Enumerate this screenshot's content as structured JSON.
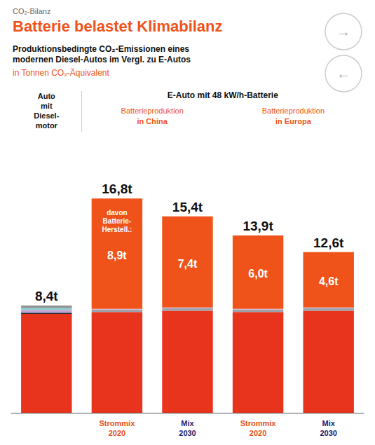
{
  "chart_data": {
    "type": "bar",
    "stacked": true,
    "supertitle": "CO₂-Bilanz",
    "title": "Batterie belastet Klimabilanz",
    "title_color": "#F0531A",
    "subtitle": "Produktionsbedingte CO₂-Emissionen eines\nmodernen Diesel-Autos im Vergl. zu E-Autos",
    "unit_note": "in Tonnen CO₂-Äquivalent",
    "nav_arrows": [
      "→",
      "←"
    ],
    "header_first": "Auto\nmit\nDiesel-\nmotor",
    "header_group": "E-Auto mit 48 kW/h-Batterie",
    "subgroup_headers": [
      "Batterieproduktion\nin China",
      "Batterieproduktion\nin Europa"
    ],
    "categories": [
      null,
      "Strommix\n2020",
      "Mix\n2030",
      "Strommix\n2020",
      "Mix\n2030"
    ],
    "category_colors": [
      null,
      "#E8501A",
      "#1A1A6E",
      "#E8501A",
      "#1A1A6E"
    ],
    "ylim": [
      0,
      20
    ],
    "tick_labels": "x",
    "grid": false,
    "series": [
      {
        "color": "#E8341C",
        "values": [
          7.75,
          7.9,
          8.0,
          7.9,
          8.0
        ]
      },
      {
        "color": "#2A2A2A",
        "values": [
          0.05,
          null,
          null,
          null,
          null
        ]
      },
      {
        "color": "#1A3560",
        "values": [
          0.04,
          null,
          null,
          null,
          null
        ]
      },
      {
        "color": "#7878B8",
        "values": [
          0.04,
          null,
          null,
          null,
          null
        ]
      },
      {
        "color": "#C8A0D0",
        "values": [
          0.18,
          null,
          null,
          null,
          null
        ]
      },
      {
        "color": "#88D0D0",
        "values": [
          0.16,
          null,
          null,
          null,
          null
        ]
      },
      {
        "color": "#909090",
        "values": [
          0.18,
          null,
          null,
          null,
          null
        ]
      },
      {
        "color": "#A0A0A8",
        "values": [
          null,
          0.18,
          0.18,
          0.18,
          0.18
        ]
      },
      {
        "color": "#D0C0D8",
        "values": [
          null,
          0.07,
          0.07,
          0.07,
          0.07
        ]
      },
      {
        "color": "#F0531A",
        "values": [
          null,
          8.65,
          7.15,
          5.75,
          4.35
        ],
        "battery": [
          null,
          8.9,
          7.4,
          6.0,
          4.6
        ],
        "battery_labels": [
          null,
          "8,9t",
          "7,4t",
          "6,0t",
          "4,6t"
        ]
      }
    ],
    "totals": [
      8.4,
      16.8,
      15.4,
      13.9,
      12.6
    ],
    "total_labels": [
      "8,4t",
      "16,8t",
      "15,4t",
      "13,9t",
      "12,6t"
    ],
    "annotation": "davon\nBatterie-\nHerstell.:"
  }
}
